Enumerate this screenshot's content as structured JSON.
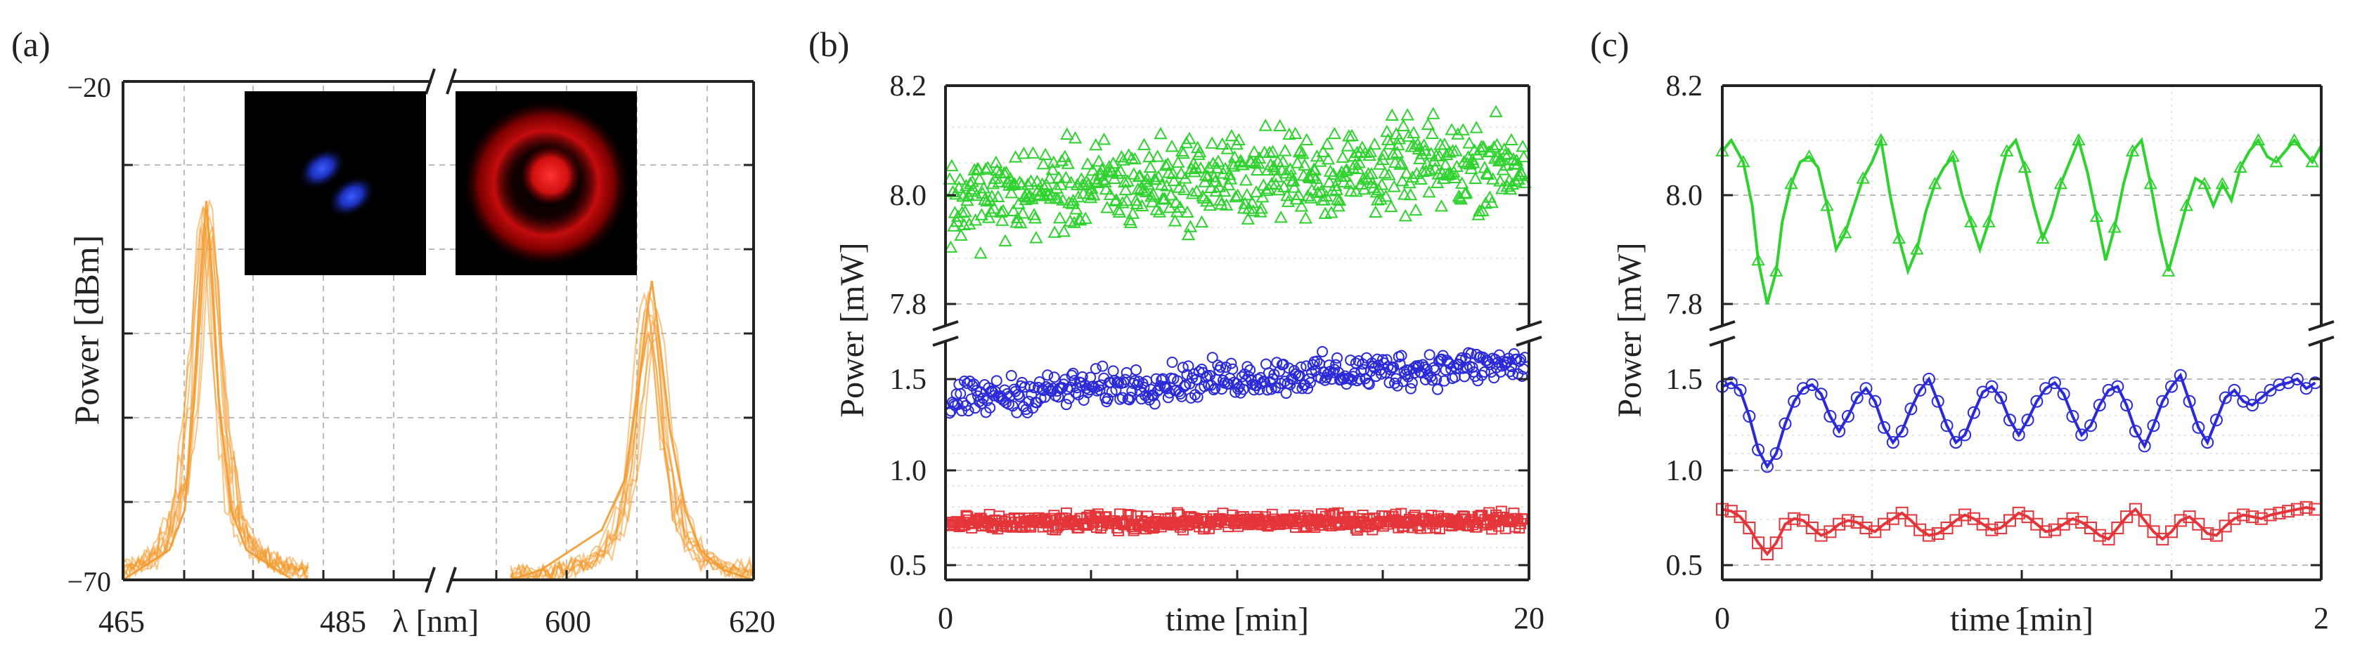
{
  "figure": {
    "panels": [
      {
        "label": "(a)"
      },
      {
        "label": "(b)"
      },
      {
        "label": "(c)"
      }
    ]
  },
  "colors": {
    "green": "#2fd22f",
    "blue": "#2a2ad8",
    "red": "#e4353a",
    "orange": "#f29a30",
    "blue_spot": "#1f3fe0",
    "red_spot": "#ff2020"
  },
  "chart_data": [
    {
      "panel": "(a)",
      "type": "line",
      "ylabel": "Power [dBm]",
      "xlabel": "λ [nm]",
      "broken_x_axis": true,
      "x_segments": [
        {
          "range": [
            465,
            485
          ],
          "ticks": [
            465,
            485
          ]
        },
        {
          "range": [
            600,
            620
          ],
          "ticks": [
            600,
            620
          ]
        }
      ],
      "ylim": [
        -70,
        -20
      ],
      "y_tick_labels": [
        "−20",
        "−70"
      ],
      "grid": true,
      "insets": [
        "blue-beam-profile",
        "red-beam-profile"
      ],
      "series": [
        {
          "color": "orange",
          "peak_x": 470.4,
          "peak_y": -32,
          "half_width": 0.8,
          "x": [
            465,
            466,
            467,
            468,
            469,
            469.6,
            470.0,
            470.4,
            470.8,
            471.2,
            472,
            473,
            474,
            475,
            476,
            477
          ],
          "y": [
            -70,
            -69,
            -68,
            -67,
            -63,
            -52,
            -40,
            -32,
            -40,
            -52,
            -63,
            -67,
            -68,
            -69,
            -70,
            -70
          ]
        },
        {
          "color": "orange",
          "peak_x": 613.3,
          "peak_y": -40,
          "half_width": 0.9,
          "x": [
            604,
            606,
            608,
            610,
            611.5,
            612.4,
            613.0,
            613.3,
            613.8,
            614.5,
            615.5,
            616.5,
            618,
            620
          ],
          "y": [
            -70,
            -69,
            -67,
            -65,
            -60,
            -51,
            -43,
            -40,
            -46,
            -55,
            -63,
            -67,
            -69,
            -70
          ]
        }
      ]
    },
    {
      "panel": "(b)",
      "type": "scatter",
      "xlabel": "time [min]",
      "ylabel": "Power [mW]",
      "xlim": [
        0,
        20
      ],
      "x_ticks": [
        "0",
        "20"
      ],
      "broken_y_axis": true,
      "upper_ylim": [
        7.78,
        8.2
      ],
      "upper_y_ticks": [
        "7.8",
        "8.0",
        "8.2"
      ],
      "lower_ylim": [
        0.4,
        1.7
      ],
      "lower_y_ticks": [
        "0.5",
        "1.0",
        "1.5"
      ],
      "series": [
        {
          "color": "green",
          "marker": "triangle",
          "n_points": 560,
          "mean_start": 7.98,
          "mean_end": 8.06,
          "spread": 0.12
        },
        {
          "color": "blue",
          "marker": "circle",
          "n_points": 430,
          "mean_start": 1.36,
          "mean_end": 1.58,
          "spread": 0.14
        },
        {
          "color": "red",
          "marker": "square",
          "n_points": 420,
          "mean_start": 0.72,
          "mean_end": 0.74,
          "spread": 0.06
        }
      ]
    },
    {
      "panel": "(c)",
      "type": "line",
      "xlabel": "time [min]",
      "ylabel": "Power [mW]",
      "xlim": [
        0,
        2
      ],
      "x_ticks": [
        "0",
        "1",
        "2"
      ],
      "broken_y_axis": true,
      "upper_ylim": [
        7.78,
        8.2
      ],
      "upper_y_ticks": [
        "7.8",
        "8.0",
        "8.2"
      ],
      "lower_ylim": [
        0.4,
        1.7
      ],
      "lower_y_ticks": [
        "0.5",
        "1.0",
        "1.5"
      ],
      "series": [
        {
          "color": "green",
          "marker": "triangle",
          "x": [
            0,
            0.03,
            0.07,
            0.1,
            0.12,
            0.15,
            0.18,
            0.2,
            0.23,
            0.26,
            0.29,
            0.32,
            0.35,
            0.38,
            0.41,
            0.44,
            0.47,
            0.5,
            0.53,
            0.56,
            0.59,
            0.62,
            0.65,
            0.68,
            0.71,
            0.74,
            0.77,
            0.8,
            0.83,
            0.86,
            0.89,
            0.92,
            0.95,
            0.98,
            1.01,
            1.04,
            1.07,
            1.1,
            1.13,
            1.16,
            1.19,
            1.22,
            1.25,
            1.28,
            1.31,
            1.34,
            1.37,
            1.4,
            1.43,
            1.46,
            1.49,
            1.52,
            1.55,
            1.58,
            1.61,
            1.64,
            1.67,
            1.7,
            1.73,
            1.76,
            1.79,
            1.82,
            1.85,
            1.88,
            1.91,
            1.94,
            1.97,
            2.0
          ],
          "y": [
            8.08,
            8.1,
            8.06,
            7.98,
            7.88,
            7.8,
            7.86,
            7.95,
            8.02,
            8.06,
            8.07,
            8.05,
            7.98,
            7.9,
            7.93,
            7.98,
            8.03,
            8.06,
            8.1,
            8.0,
            7.92,
            7.86,
            7.9,
            7.97,
            8.02,
            8.05,
            8.07,
            8.0,
            7.95,
            7.9,
            7.95,
            8.02,
            8.08,
            8.1,
            8.05,
            7.98,
            7.92,
            7.96,
            8.02,
            8.06,
            8.1,
            8.04,
            7.96,
            7.88,
            7.94,
            8.02,
            8.08,
            8.1,
            8.02,
            7.93,
            7.86,
            7.92,
            7.98,
            8.03,
            8.02,
            7.98,
            8.02,
            7.99,
            8.05,
            8.08,
            8.1,
            8.07,
            8.06,
            8.08,
            8.1,
            8.08,
            8.06,
            8.09
          ]
        },
        {
          "color": "blue",
          "marker": "circle",
          "x": [
            0,
            0.03,
            0.06,
            0.09,
            0.12,
            0.15,
            0.18,
            0.21,
            0.24,
            0.27,
            0.3,
            0.33,
            0.36,
            0.39,
            0.42,
            0.45,
            0.48,
            0.51,
            0.54,
            0.57,
            0.6,
            0.63,
            0.66,
            0.69,
            0.72,
            0.75,
            0.78,
            0.81,
            0.84,
            0.87,
            0.9,
            0.93,
            0.96,
            0.99,
            1.02,
            1.05,
            1.08,
            1.11,
            1.14,
            1.17,
            1.2,
            1.23,
            1.26,
            1.29,
            1.32,
            1.35,
            1.38,
            1.41,
            1.44,
            1.47,
            1.5,
            1.53,
            1.56,
            1.59,
            1.62,
            1.65,
            1.68,
            1.71,
            1.74,
            1.77,
            1.8,
            1.83,
            1.86,
            1.89,
            1.92,
            1.95,
            1.98
          ],
          "y": [
            1.46,
            1.48,
            1.44,
            1.3,
            1.12,
            1.03,
            1.1,
            1.26,
            1.38,
            1.45,
            1.47,
            1.42,
            1.3,
            1.22,
            1.3,
            1.4,
            1.45,
            1.38,
            1.24,
            1.16,
            1.22,
            1.34,
            1.44,
            1.5,
            1.38,
            1.25,
            1.16,
            1.2,
            1.32,
            1.43,
            1.46,
            1.4,
            1.28,
            1.2,
            1.28,
            1.38,
            1.45,
            1.48,
            1.42,
            1.3,
            1.2,
            1.25,
            1.36,
            1.44,
            1.46,
            1.36,
            1.22,
            1.14,
            1.25,
            1.38,
            1.46,
            1.52,
            1.38,
            1.24,
            1.16,
            1.28,
            1.4,
            1.44,
            1.38,
            1.36,
            1.4,
            1.44,
            1.47,
            1.48,
            1.5,
            1.45,
            1.48
          ]
        },
        {
          "color": "red",
          "marker": "square",
          "x": [
            0,
            0.03,
            0.06,
            0.09,
            0.12,
            0.15,
            0.18,
            0.21,
            0.24,
            0.27,
            0.3,
            0.33,
            0.36,
            0.39,
            0.42,
            0.45,
            0.48,
            0.51,
            0.54,
            0.57,
            0.6,
            0.63,
            0.66,
            0.69,
            0.72,
            0.75,
            0.78,
            0.81,
            0.84,
            0.87,
            0.9,
            0.93,
            0.96,
            0.99,
            1.02,
            1.05,
            1.08,
            1.11,
            1.14,
            1.17,
            1.2,
            1.23,
            1.26,
            1.29,
            1.32,
            1.35,
            1.38,
            1.41,
            1.44,
            1.47,
            1.5,
            1.53,
            1.56,
            1.59,
            1.62,
            1.65,
            1.68,
            1.71,
            1.74,
            1.77,
            1.8,
            1.83,
            1.86,
            1.89,
            1.92,
            1.95,
            1.98
          ],
          "y": [
            0.8,
            0.79,
            0.76,
            0.7,
            0.62,
            0.56,
            0.62,
            0.72,
            0.75,
            0.74,
            0.7,
            0.66,
            0.68,
            0.72,
            0.74,
            0.73,
            0.7,
            0.68,
            0.72,
            0.75,
            0.78,
            0.74,
            0.69,
            0.66,
            0.67,
            0.7,
            0.74,
            0.77,
            0.75,
            0.72,
            0.69,
            0.7,
            0.74,
            0.78,
            0.76,
            0.72,
            0.68,
            0.69,
            0.72,
            0.75,
            0.73,
            0.7,
            0.66,
            0.64,
            0.7,
            0.76,
            0.8,
            0.74,
            0.68,
            0.64,
            0.68,
            0.74,
            0.76,
            0.72,
            0.67,
            0.66,
            0.71,
            0.75,
            0.77,
            0.76,
            0.75,
            0.77,
            0.78,
            0.79,
            0.8,
            0.81,
            0.8
          ]
        }
      ]
    }
  ]
}
